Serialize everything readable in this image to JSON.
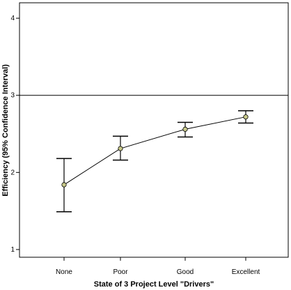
{
  "chart_data": {
    "type": "line",
    "subtype": "error-bar-means",
    "title": "",
    "xlabel": "State of 3 Project Level \"Drivers\"",
    "ylabel": "Efficiency (95% Confidence Interval)",
    "categories": [
      "None",
      "Poor",
      "Good",
      "Excellent"
    ],
    "series": [
      {
        "mean": [
          1.84,
          2.31,
          2.56,
          2.72
        ],
        "ci_lower": [
          1.49,
          2.16,
          2.46,
          2.64
        ],
        "ci_upper": [
          2.18,
          2.47,
          2.65,
          2.8
        ]
      }
    ],
    "ylim": [
      0.9,
      4.2
    ],
    "yticks": [
      1,
      2,
      3,
      4
    ],
    "reference_line": 3,
    "grid": false,
    "legend": "none",
    "colors": {
      "marker_fill": "#c8c98a",
      "line": "#000000"
    }
  }
}
